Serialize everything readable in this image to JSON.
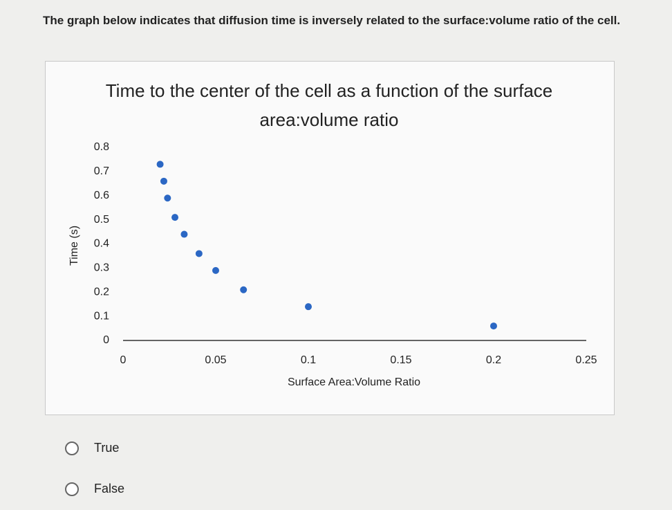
{
  "question": "The graph below indicates that diffusion time is inversely related to the surface:volume ratio of the cell.",
  "chart_data": {
    "type": "scatter",
    "title": "Time to the center of the cell as a function of the surface area:volume ratio",
    "x_label": "Surface Area:Volume Ratio",
    "y_label": "Time (s)",
    "x": [
      0.02,
      0.022,
      0.024,
      0.028,
      0.033,
      0.041,
      0.05,
      0.065,
      0.1,
      0.2
    ],
    "series": [
      {
        "name": "Time",
        "color": "#2b67c4",
        "values": [
          0.73,
          0.66,
          0.59,
          0.51,
          0.44,
          0.36,
          0.29,
          0.21,
          0.14,
          0.06
        ]
      }
    ],
    "xlim": [
      0,
      0.25
    ],
    "xticks": [
      0,
      0.05,
      0.1,
      0.15,
      0.2,
      0.25
    ],
    "ylim": [
      0,
      0.8
    ],
    "yticks": [
      0,
      0.1,
      0.2,
      0.3,
      0.4,
      0.5,
      0.6,
      0.7,
      0.8
    ],
    "grid": false
  },
  "options": [
    "True",
    "False"
  ]
}
